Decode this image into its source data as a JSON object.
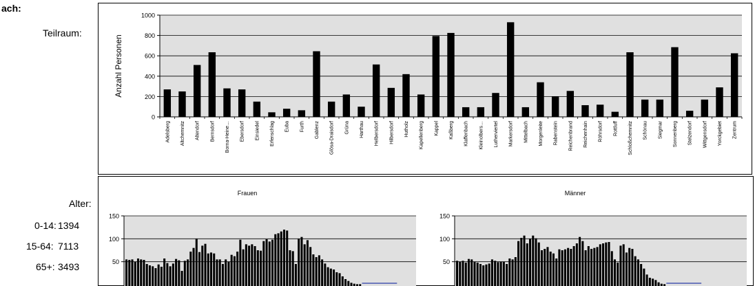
{
  "left_panel": {
    "heading_fragment": "ach:",
    "teilraum_label": "Teilraum:",
    "alter_label": "Alter:",
    "age_groups": [
      {
        "label": "0-14:",
        "value": "1394"
      },
      {
        "label": "15-64:",
        "value": "7113"
      },
      {
        "label": "65+:",
        "value": "3493"
      }
    ]
  },
  "colors": {
    "plot_bg": "#e0e0e0",
    "bar": "#000000",
    "axis": "#000000",
    "baseline_accent": "#2b3ea8"
  },
  "chart_data": [
    {
      "type": "bar",
      "ylabel": "Anzahl Personen",
      "ylim": [
        0,
        1000
      ],
      "yticks": [
        0,
        200,
        400,
        600,
        800,
        1000
      ],
      "grid": true,
      "categories": [
        "Adelsberg",
        "Altchemnitz",
        "Altendorf",
        "Bernsdorf",
        "Borna-Heine…",
        "Ebersdorf",
        "Einsiedel",
        "Erfenschlag",
        "Euba",
        "Furth",
        "Gablenz",
        "Glösa-Draisdorf",
        "Grüna",
        "Harthau",
        "Helbersdorf",
        "Hilbersdorf",
        "Hutholz",
        "Kapellenberg",
        "Kappel",
        "Kaßberg",
        "Klaffenbach",
        "Kleinolbers…",
        "Lutherviertel",
        "Markersdorf",
        "Mittelbach",
        "Morgenleite",
        "Rabenstein",
        "Reichenbrand",
        "Reichenhain",
        "Röhrsdorf",
        "Rottluff",
        "Schloßchemnitz",
        "Schönau",
        "Siegmar",
        "Sonnenberg",
        "Stelzendorf",
        "Wittgensdorf",
        "Yorckgebiet",
        "Zentrum"
      ],
      "values": [
        270,
        250,
        510,
        635,
        280,
        270,
        150,
        45,
        80,
        65,
        645,
        150,
        220,
        100,
        515,
        285,
        420,
        220,
        795,
        825,
        95,
        95,
        235,
        930,
        95,
        340,
        200,
        255,
        115,
        120,
        50,
        635,
        170,
        170,
        685,
        60,
        170,
        290,
        625
      ]
    },
    {
      "type": "bar",
      "title": "Frauen",
      "ylim": [
        0,
        150
      ],
      "yticks": [
        50,
        100,
        150
      ],
      "grid": true,
      "values": [
        55,
        54,
        55,
        50,
        57,
        55,
        54,
        45,
        42,
        40,
        36,
        44,
        39,
        57,
        47,
        40,
        46,
        56,
        53,
        30,
        52,
        55,
        72,
        80,
        100,
        71,
        85,
        89,
        68,
        70,
        68,
        55,
        55,
        45,
        55,
        50,
        65,
        62,
        72,
        98,
        77,
        88,
        85,
        88,
        84,
        75,
        74,
        95,
        99,
        94,
        98,
        110,
        112,
        116,
        120,
        118,
        75,
        73,
        45,
        100,
        104,
        88,
        97,
        82,
        66,
        60,
        64,
        55,
        46,
        38,
        35,
        33,
        27,
        25,
        18,
        12,
        8,
        4,
        2,
        1,
        1,
        0,
        0,
        0,
        0,
        0,
        0,
        0,
        0,
        0,
        0,
        0,
        0,
        0,
        0,
        0,
        0,
        0,
        0,
        0
      ]
    },
    {
      "type": "bar",
      "title": "Männer",
      "ylim": [
        0,
        150
      ],
      "yticks": [
        50,
        100,
        150
      ],
      "grid": true,
      "values": [
        52,
        50,
        52,
        48,
        56,
        55,
        50,
        48,
        45,
        42,
        44,
        46,
        55,
        52,
        49,
        50,
        50,
        45,
        57,
        55,
        60,
        95,
        102,
        107,
        90,
        100,
        107,
        101,
        92,
        75,
        78,
        82,
        72,
        68,
        57,
        77,
        75,
        77,
        80,
        78,
        84,
        90,
        104,
        95,
        75,
        84,
        78,
        80,
        82,
        88,
        90,
        92,
        93,
        73,
        55,
        48,
        85,
        88,
        70,
        80,
        78,
        62,
        55,
        45,
        35,
        22,
        15,
        13,
        10,
        5,
        2,
        1,
        0,
        0,
        0,
        0,
        0,
        0,
        0,
        0,
        0,
        0,
        0,
        0,
        0,
        0,
        0,
        0,
        0,
        0,
        0,
        0,
        0,
        0,
        0,
        0,
        0,
        0,
        0,
        0
      ]
    }
  ]
}
